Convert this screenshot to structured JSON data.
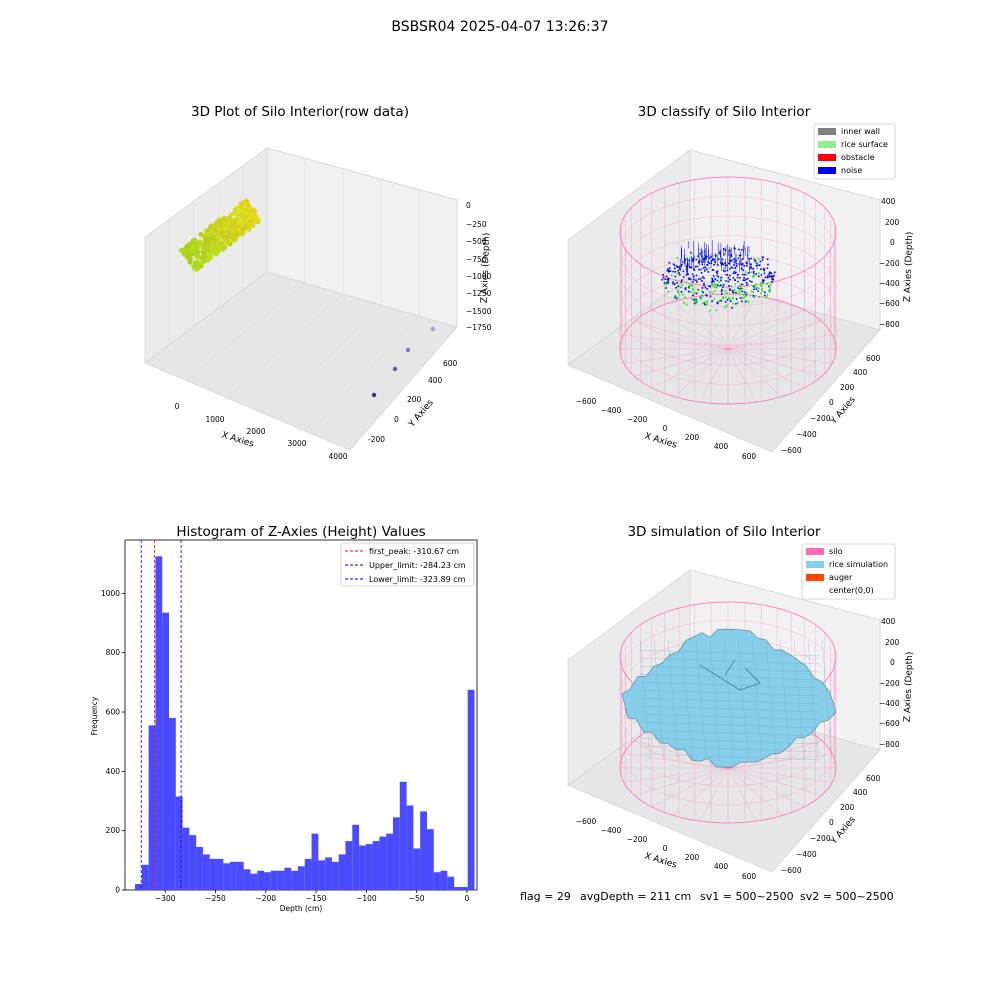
{
  "suptitle": "BSBSR04 2025-04-07 13:26:37",
  "footer": {
    "flag": "flag = 29",
    "avg": "avgDepth = 211 cm",
    "sv1": "sv1 = 500~2500",
    "sv2": "sv2 = 500~2500"
  },
  "colors": {
    "hist_bar": "#4a4aff",
    "peak_line": "#ff0000",
    "limit_line": "#0000cc",
    "inner_wall": "#808080",
    "rice_surface": "#90ee90",
    "obstacle": "#ff0000",
    "noise": "#0000ee",
    "silo": "#ff69b4",
    "rice_simulation": "#87ceeb",
    "auger": "#ff4500",
    "pane": "#f2f2f2"
  },
  "chart_data": [
    {
      "type": "scatter3d",
      "title": "3D Plot of Silo Interior(row data)",
      "xlabel": "X Axies",
      "ylabel": "Y Axies",
      "zlabel": "Z Axies (Depth)",
      "xticks": [
        "0",
        "1000",
        "2000",
        "3000",
        "4000"
      ],
      "yticks": [
        "-200",
        "0",
        "200",
        "400",
        "600"
      ],
      "zticks": [
        "0",
        "−250",
        "−500",
        "−750",
        "−1000",
        "−1250",
        "−1500",
        "−1750"
      ],
      "outliers": [
        {
          "x": 3900,
          "y": 600,
          "z": -1750
        },
        {
          "x": 3800,
          "y": 350,
          "z": -1830
        },
        {
          "x": 3700,
          "y": 150,
          "z": -1880
        },
        {
          "x": 3600,
          "y": -100,
          "z": -1930
        }
      ]
    },
    {
      "type": "scatter3d",
      "title": "3D classify of Silo Interior",
      "xlabel": "X Axies",
      "ylabel": "Y Axies",
      "zlabel": "Z Axies (Depth)",
      "xticks": [
        "−600",
        "−400",
        "−200",
        "0",
        "200",
        "400",
        "600"
      ],
      "yticks": [
        "−600",
        "−400",
        "−200",
        "0",
        "200",
        "400",
        "600"
      ],
      "zticks": [
        "400",
        "200",
        "0",
        "−200",
        "−400",
        "−600",
        "−800"
      ],
      "legend": [
        "inner wall",
        "rice surface",
        "obstacle",
        "noise"
      ],
      "legend_loc": "upper right"
    },
    {
      "type": "bar",
      "title": "Histogram of Z-Axies (Height) Values",
      "xlabel": "Depth (cm)",
      "ylabel": "Frequency",
      "xlim": [
        -340,
        10
      ],
      "ylim": [
        0,
        1180
      ],
      "xticks": [
        -300,
        -250,
        -200,
        -150,
        -100,
        -50,
        0
      ],
      "xticklabels": [
        "−300",
        "−250",
        "−200",
        "−150",
        "−100",
        "−50",
        "0"
      ],
      "yticks": [
        0,
        200,
        400,
        600,
        800,
        1000
      ],
      "bin_width": 6.75,
      "bin_starts": [
        -330,
        -323.25,
        -316.5,
        -309.75,
        -303,
        -296.25,
        -289.5,
        -282.75,
        -276,
        -269.25,
        -262.5,
        -255.75,
        -249,
        -242.25,
        -235.5,
        -228.75,
        -222,
        -215.25,
        -208.5,
        -201.75,
        -195,
        -188.25,
        -181.5,
        -174.75,
        -168,
        -161.25,
        -154.5,
        -147.75,
        -141,
        -134.25,
        -127.5,
        -120.75,
        -114,
        -107.25,
        -100.5,
        -93.75,
        -87,
        -80.25,
        -73.5,
        -66.75,
        -60,
        -53.25,
        -46.5,
        -39.75,
        -33,
        -26.25,
        -19.5,
        -12.75,
        -6,
        0.75
      ],
      "values": [
        20,
        85,
        555,
        1125,
        935,
        580,
        315,
        210,
        185,
        145,
        120,
        105,
        105,
        90,
        95,
        95,
        70,
        55,
        65,
        60,
        65,
        65,
        75,
        65,
        80,
        105,
        190,
        100,
        110,
        95,
        120,
        165,
        220,
        150,
        155,
        165,
        180,
        190,
        245,
        365,
        285,
        140,
        265,
        205,
        60,
        65,
        45,
        10,
        10,
        675
      ],
      "vlines": [
        {
          "name": "first_peak",
          "x": -310.67,
          "style": "red-dashed"
        },
        {
          "name": "Upper_limit",
          "x": -284.23,
          "style": "blue-dashed"
        },
        {
          "name": "Lower_limit",
          "x": -323.89,
          "style": "blue-dashed"
        }
      ],
      "legend": [
        "first_peak: -310.67 cm",
        "Upper_limit: -284.23 cm",
        "Lower_limit: -323.89 cm"
      ],
      "legend_loc": "upper right"
    },
    {
      "type": "surface3d",
      "title": "3D simulation of Silo Interior",
      "xlabel": "X Axies",
      "ylabel": "Y Axies",
      "zlabel": "Z Axies (Depth)",
      "xticks": [
        "−600",
        "−400",
        "−200",
        "0",
        "200",
        "400",
        "600"
      ],
      "yticks": [
        "−600",
        "−400",
        "−200",
        "0",
        "200",
        "400",
        "600"
      ],
      "zticks": [
        "400",
        "200",
        "0",
        "−200",
        "−400",
        "−600",
        "−800"
      ],
      "legend": [
        "silo",
        "rice simulation",
        "auger",
        "center(0,0)"
      ],
      "legend_loc": "upper right"
    }
  ]
}
